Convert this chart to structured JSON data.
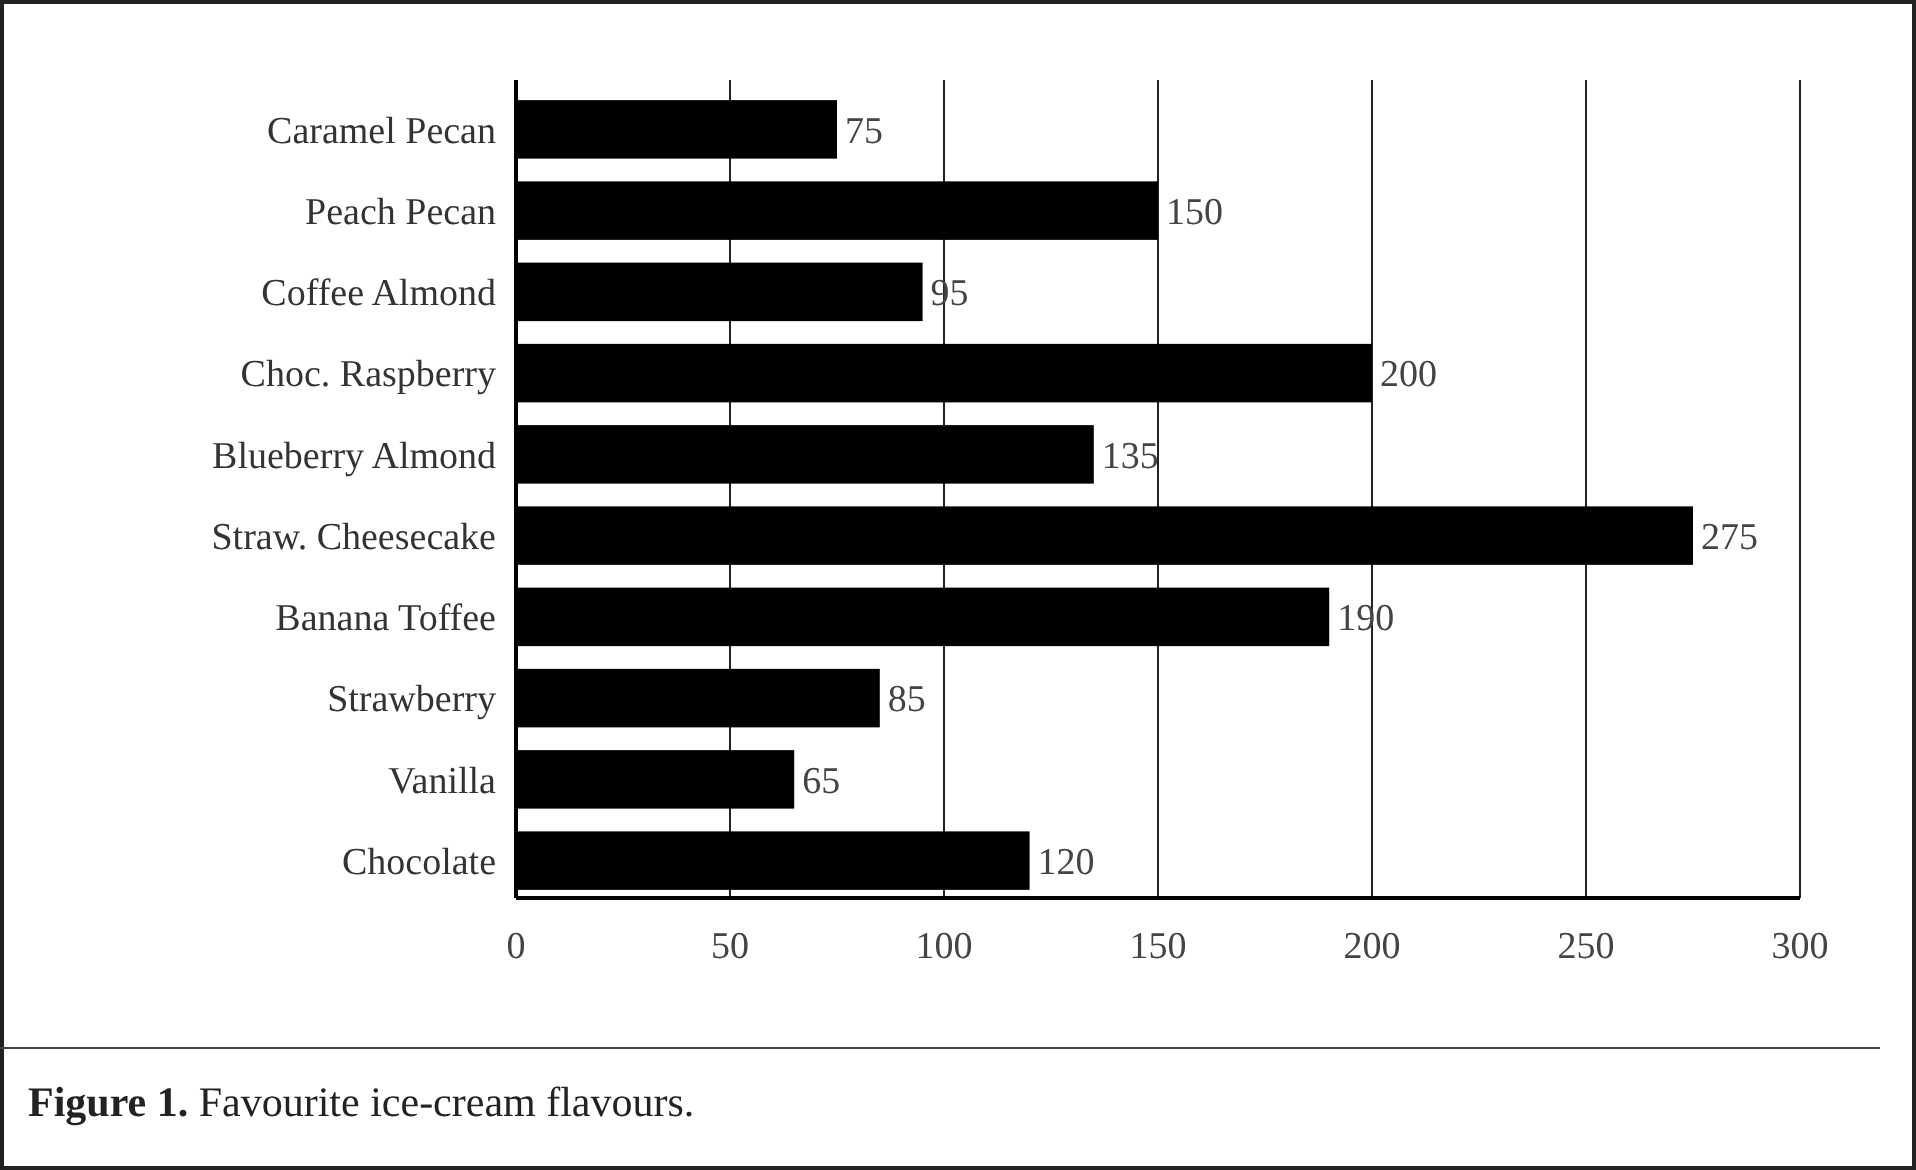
{
  "chart_data": {
    "type": "bar",
    "orientation": "horizontal",
    "title": "Figure 1. Favourite ice-cream flavours.",
    "categories": [
      "Caramel Pecan",
      "Peach Pecan",
      "Coffee Almond",
      "Choc. Raspberry",
      "Blueberry Almond",
      "Straw. Cheesecake",
      "Banana Toffee",
      "Strawberry",
      "Vanilla",
      "Chocolate"
    ],
    "values": [
      75,
      150,
      95,
      200,
      135,
      275,
      190,
      85,
      65,
      120
    ],
    "color": "#000000",
    "xlim": [
      0,
      300
    ],
    "xticks": [
      0,
      50,
      100,
      150,
      200,
      250,
      300
    ],
    "grid": "x",
    "data_labels": true
  }
}
